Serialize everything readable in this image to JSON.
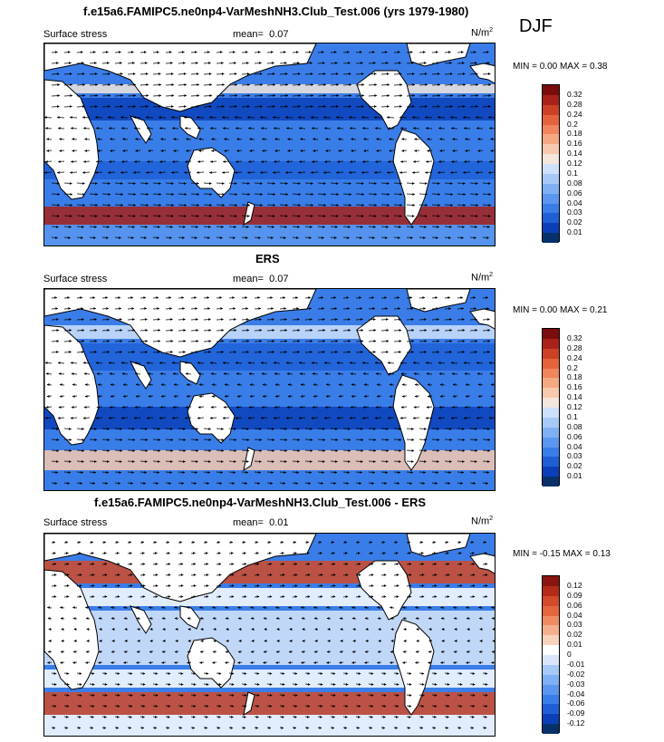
{
  "season": "DJF",
  "colors": {
    "model_scale": [
      "#08306b",
      "#0a3fb8",
      "#1f5fd6",
      "#3a7de8",
      "#5b97ee",
      "#7fb0f3",
      "#a7c9f7",
      "#cfe0fa",
      "#f2e6dd",
      "#f7c9ae",
      "#f4a982",
      "#ef865c",
      "#e4633d",
      "#cc4125",
      "#a8211a",
      "#7a0c0c"
    ],
    "diff_scale": [
      "#08306b",
      "#0a3fb8",
      "#1f5fd6",
      "#3a7de8",
      "#5b97ee",
      "#7fb0f3",
      "#a7c9f7",
      "#d9e6fa",
      "#ffffff",
      "#f7d3bd",
      "#f4b08e",
      "#ef8c62",
      "#e4663e",
      "#d24a28",
      "#b32b18",
      "#8a1410"
    ]
  },
  "panels": [
    {
      "title": "f.e15a6.FAMIPC5.ne0np4-VarMeshNH3.Club_Test.006 (yrs 1979-1980)",
      "variable": "Surface stress",
      "mean_label": "mean=",
      "mean_value": "0.07",
      "units": "N/m",
      "units_sup": "2",
      "minmax": "MIN =   0.00 MAX =   0.38"
    },
    {
      "title": "ERS",
      "variable": "Surface stress",
      "mean_label": "mean=",
      "mean_value": "0.07",
      "units": "N/m",
      "units_sup": "2",
      "minmax": "MIN =   0.00 MAX =   0.21"
    },
    {
      "title": "f.e15a6.FAMIPC5.ne0np4-VarMeshNH3.Club_Test.006 - ERS",
      "variable": "Surface stress",
      "mean_label": "mean=",
      "mean_value": "0.01",
      "units": "N/m",
      "units_sup": "2",
      "minmax": "MIN = -0.15 MAX =   0.13"
    }
  ],
  "chart_data": [
    {
      "type": "heatmap",
      "title": "f.e15a6.FAMIPC5.ne0np4-VarMeshNH3.Club_Test.006 (yrs 1979-1980)",
      "variable": "Surface stress",
      "units": "N/m^2",
      "mean": 0.07,
      "min": 0.0,
      "max": 0.38,
      "colorbar_levels": [
        "0.32",
        "0.28",
        "0.24",
        "0.2",
        "0.18",
        "0.16",
        "0.14",
        "0.12",
        "0.1",
        "0.08",
        "0.06",
        "0.04",
        "0.03",
        "0.02",
        "0.01"
      ]
    },
    {
      "type": "heatmap",
      "title": "ERS",
      "variable": "Surface stress",
      "units": "N/m^2",
      "mean": 0.07,
      "min": 0.0,
      "max": 0.21,
      "colorbar_levels": [
        "0.32",
        "0.28",
        "0.24",
        "0.2",
        "0.18",
        "0.16",
        "0.14",
        "0.12",
        "0.1",
        "0.08",
        "0.06",
        "0.04",
        "0.03",
        "0.02",
        "0.01"
      ]
    },
    {
      "type": "heatmap",
      "title": "f.e15a6.FAMIPC5.ne0np4-VarMeshNH3.Club_Test.006 - ERS",
      "variable": "Surface stress",
      "units": "N/m^2",
      "mean": 0.01,
      "min": -0.15,
      "max": 0.13,
      "colorbar_levels": [
        "0.12",
        "0.09",
        "0.06",
        "0.04",
        "0.03",
        "0.02",
        "0.01",
        "0",
        "-0.01",
        "-0.02",
        "-0.03",
        "-0.04",
        "-0.06",
        "-0.09",
        "-0.12"
      ]
    }
  ]
}
